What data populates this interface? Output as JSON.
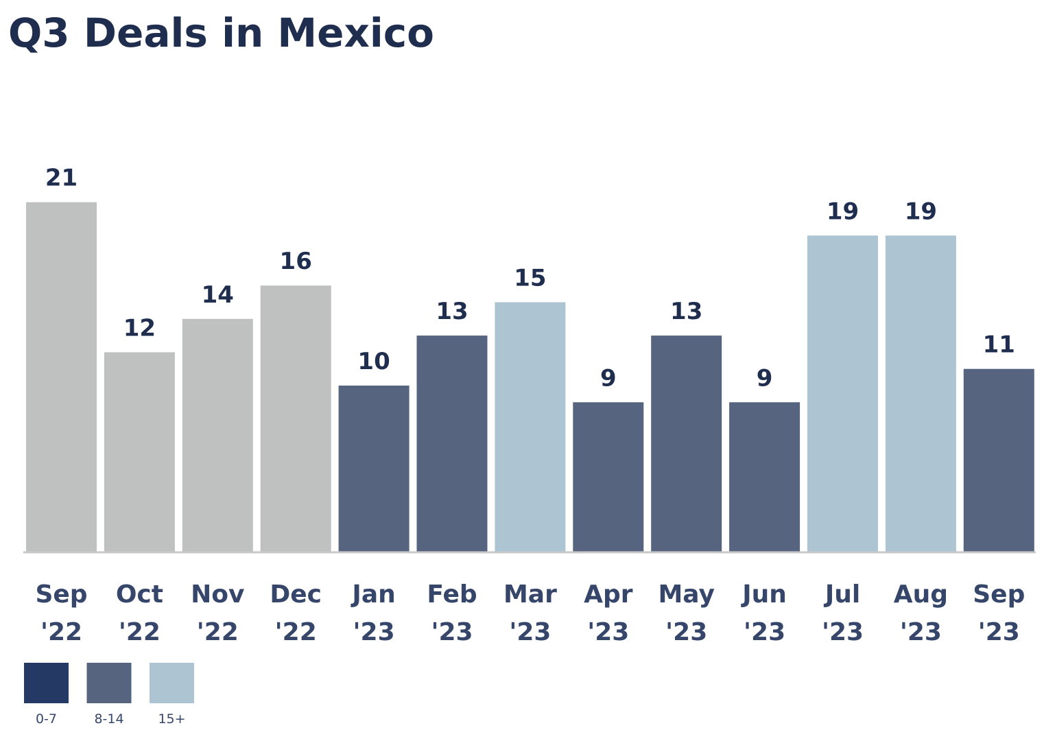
{
  "title": "Q3 Deals in Mexico",
  "chart_data": {
    "type": "bar",
    "title": "Q3 Deals in Mexico",
    "xlabel": "",
    "ylabel": "",
    "ylim": [
      0,
      21
    ],
    "grid": false,
    "legend_placement": "bottom-left",
    "categories": [
      [
        "Sep",
        "'22"
      ],
      [
        "Oct",
        "'22"
      ],
      [
        "Nov",
        "'22"
      ],
      [
        "Dec",
        "'22"
      ],
      [
        "Jan",
        "'23"
      ],
      [
        "Feb",
        "'23"
      ],
      [
        "Mar",
        "'23"
      ],
      [
        "Apr",
        "'23"
      ],
      [
        "May",
        "'23"
      ],
      [
        "Jun",
        "'23"
      ],
      [
        "Jul",
        "'23"
      ],
      [
        "Aug",
        "'23"
      ],
      [
        "Sep",
        "'23"
      ]
    ],
    "values": [
      21,
      12,
      14,
      16,
      10,
      13,
      15,
      9,
      13,
      9,
      19,
      19,
      11
    ],
    "bar_colors": [
      "#bfc0c0",
      "#bfc0c0",
      "#bfc0c0",
      "#bfc0c0",
      "#56647f",
      "#56647f",
      "#adc5d2",
      "#56647f",
      "#56647f",
      "#56647f",
      "#adc5d2",
      "#adc5d2",
      "#56647f"
    ],
    "legend": [
      {
        "label": "0-7",
        "color": "#243a64"
      },
      {
        "label": "8-14",
        "color": "#56647f"
      },
      {
        "label": "15+",
        "color": "#adc5d2"
      }
    ],
    "colors": {
      "title": "#1f2d4e",
      "value_label": "#1f2d4e",
      "category_label": "#36466a",
      "baseline": "#c8c8c8"
    }
  }
}
